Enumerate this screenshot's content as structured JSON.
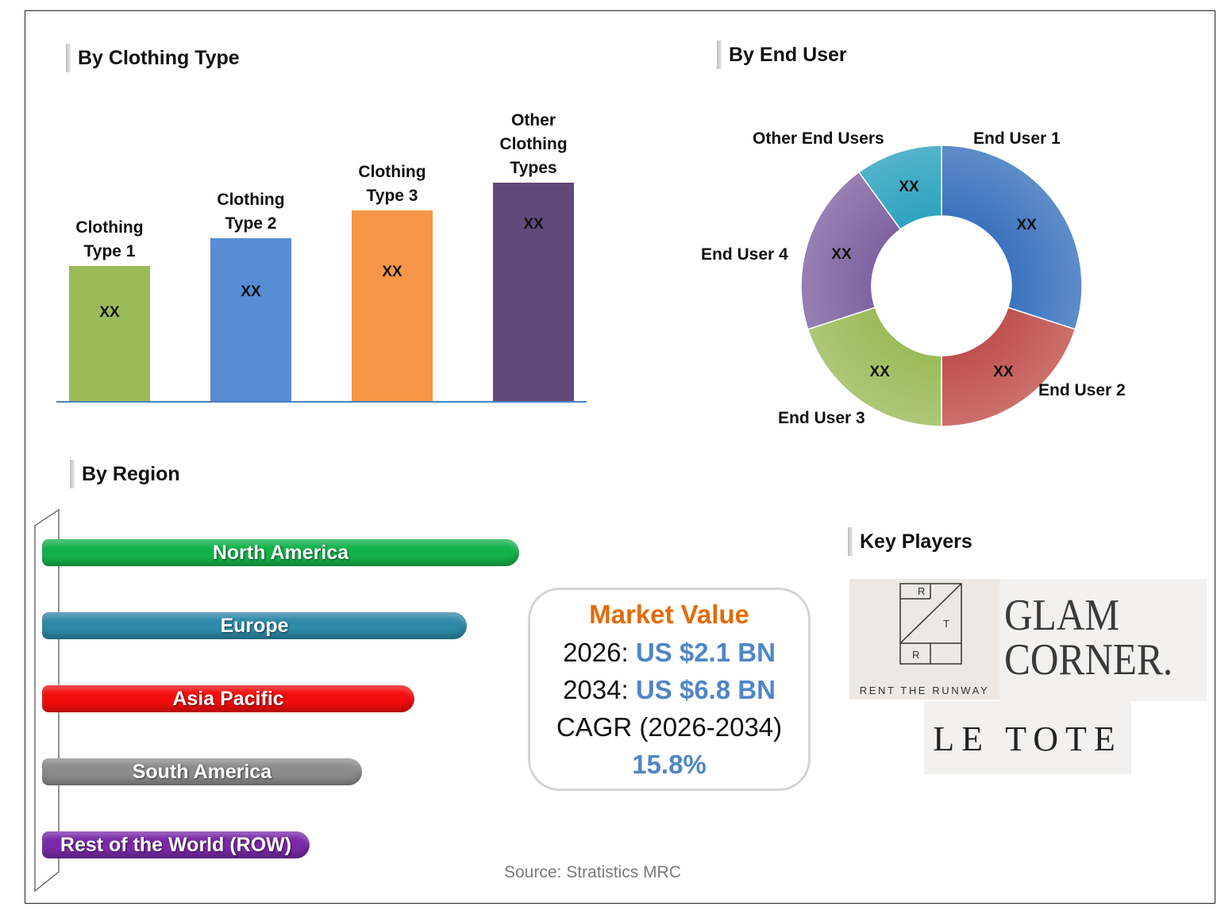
{
  "clothing_type": {
    "title": "By Clothing Type",
    "bars": [
      {
        "label_lines": [
          "Clothing",
          "Type 1"
        ],
        "value_label": "XX",
        "color": "#9bbb59"
      },
      {
        "label_lines": [
          "Clothing",
          "Type 2"
        ],
        "value_label": "XX",
        "color": "#558ed5"
      },
      {
        "label_lines": [
          "Clothing",
          "Type 3"
        ],
        "value_label": "XX",
        "color": "#f79646"
      },
      {
        "label_lines": [
          "Other",
          "Clothing",
          "Types"
        ],
        "value_label": "XX",
        "color": "#604a7b"
      }
    ]
  },
  "end_user": {
    "title": "By End User",
    "segments": [
      {
        "label": "End User 1",
        "value_label": "XX",
        "color": "#3b73be"
      },
      {
        "label": "End User 2",
        "value_label": "XX",
        "color": "#c0504d"
      },
      {
        "label": "End User 3",
        "value_label": "XX",
        "color": "#9bbb59"
      },
      {
        "label": "End User 4",
        "value_label": "XX",
        "color": "#8064a2"
      },
      {
        "label": "Other End Users",
        "value_label": "XX",
        "color": "#2ea3c0"
      }
    ]
  },
  "region": {
    "title": "By Region",
    "bars": [
      {
        "label": "North America",
        "color": "#14b24b"
      },
      {
        "label": "Europe",
        "color": "#2e8aa8"
      },
      {
        "label": "Asia Pacific",
        "color": "#f20d0d"
      },
      {
        "label": "South America",
        "color": "#8c8c8c"
      },
      {
        "label": "Rest of the World (ROW)",
        "color": "#7a2aa8"
      }
    ]
  },
  "market_value": {
    "title": "Market Value",
    "line1_year": "2026:",
    "line1_value": "US $2.1 BN",
    "line2_year": "2034:",
    "line2_value": "US $6.8 BN",
    "cagr_label": "CAGR (2026-2034)",
    "cagr_value": "15.8%",
    "title_color": "#e36c09"
  },
  "key_players": {
    "title": "Key Players",
    "logos": {
      "rent_the_runway": {
        "letters": [
          "R",
          "T",
          "R"
        ],
        "caption": "RENT THE RUNWAY"
      },
      "glam_corner": {
        "line1": "GLAM",
        "line2": "CORNER."
      },
      "le_tote": {
        "text": "LE TOTE"
      }
    }
  },
  "source": "Source: Stratistics MRC",
  "chart_data": [
    {
      "type": "bar",
      "title": "By Clothing Type",
      "categories": [
        "Clothing Type 1",
        "Clothing Type 2",
        "Clothing Type 3",
        "Other Clothing Types"
      ],
      "values": [
        17,
        20.5,
        24,
        27.5
      ],
      "data_labels": [
        "XX",
        "XX",
        "XX",
        "XX"
      ],
      "ylim": [
        0,
        30
      ],
      "grid": false,
      "legend": "none"
    },
    {
      "type": "pie",
      "title": "By End User",
      "categories": [
        "End User 1",
        "End User 2",
        "End User 3",
        "End User 4",
        "Other End Users"
      ],
      "values": [
        30,
        20,
        20,
        20,
        10
      ],
      "data_labels": [
        "XX",
        "XX",
        "XX",
        "XX",
        "XX"
      ],
      "donut": true,
      "legend": "none"
    },
    {
      "type": "bar",
      "orientation": "horizontal",
      "title": "By Region",
      "categories": [
        "North America",
        "Europe",
        "Asia Pacific",
        "South America",
        "Rest of the World (ROW)"
      ],
      "values": [
        100,
        89,
        78,
        67,
        56
      ],
      "legend": "none"
    }
  ]
}
